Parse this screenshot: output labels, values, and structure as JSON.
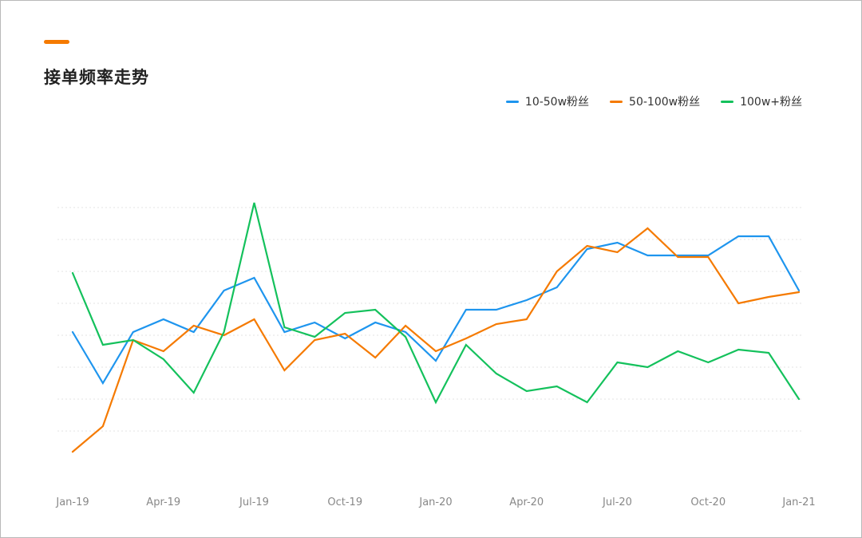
{
  "header": {
    "title": "接单频率走势"
  },
  "colors": {
    "accent": "#f57a00",
    "grid": "#e3e3e3",
    "tick": "#888888"
  },
  "chart_data": {
    "type": "line",
    "title": "接单频率走势",
    "legend_position": "top-right",
    "grid": "horizontal-dotted",
    "y_axis_labels_shown": false,
    "ylim": [
      0,
      10
    ],
    "x_tick_labels": [
      "Jan-19",
      "Apr-19",
      "Jul-19",
      "Oct-19",
      "Jan-20",
      "Apr-20",
      "Jul-20",
      "Oct-20",
      "Jan-21"
    ],
    "x_tick_positions": [
      0,
      3,
      6,
      9,
      12,
      15,
      18,
      21,
      24
    ],
    "x": [
      "2019-01",
      "2019-02",
      "2019-03",
      "2019-04",
      "2019-05",
      "2019-06",
      "2019-07",
      "2019-08",
      "2019-09",
      "2019-10",
      "2019-11",
      "2019-12",
      "2020-01",
      "2020-02",
      "2020-03",
      "2020-04",
      "2020-05",
      "2020-06",
      "2020-07",
      "2020-08",
      "2020-09",
      "2020-10",
      "2020-11",
      "2020-12",
      "2021-01"
    ],
    "series": [
      {
        "name": "10-50w粉丝",
        "color": "#1e95ee",
        "values": [
          4.1,
          2.5,
          4.1,
          4.5,
          4.1,
          5.4,
          5.8,
          4.1,
          4.4,
          3.9,
          4.4,
          4.1,
          3.2,
          4.8,
          4.8,
          5.1,
          5.5,
          6.7,
          6.9,
          6.5,
          6.5,
          6.5,
          7.1,
          7.1,
          5.4
        ]
      },
      {
        "name": "50-100w粉丝",
        "color": "#f57a00",
        "values": [
          0.35,
          1.15,
          3.85,
          3.5,
          4.3,
          4.0,
          4.5,
          2.9,
          3.85,
          4.05,
          3.3,
          4.3,
          3.5,
          3.9,
          4.35,
          4.5,
          6.0,
          6.8,
          6.6,
          7.35,
          6.45,
          6.45,
          5.0,
          5.2,
          5.35
        ]
      },
      {
        "name": "100w+粉丝",
        "color": "#14c15c",
        "values": [
          5.95,
          3.7,
          3.85,
          3.25,
          2.2,
          4.1,
          8.15,
          4.25,
          3.95,
          4.7,
          4.8,
          3.95,
          1.9,
          3.7,
          2.8,
          2.25,
          2.4,
          1.9,
          3.15,
          3.0,
          3.5,
          3.15,
          3.55,
          3.45,
          2.0
        ]
      }
    ]
  }
}
